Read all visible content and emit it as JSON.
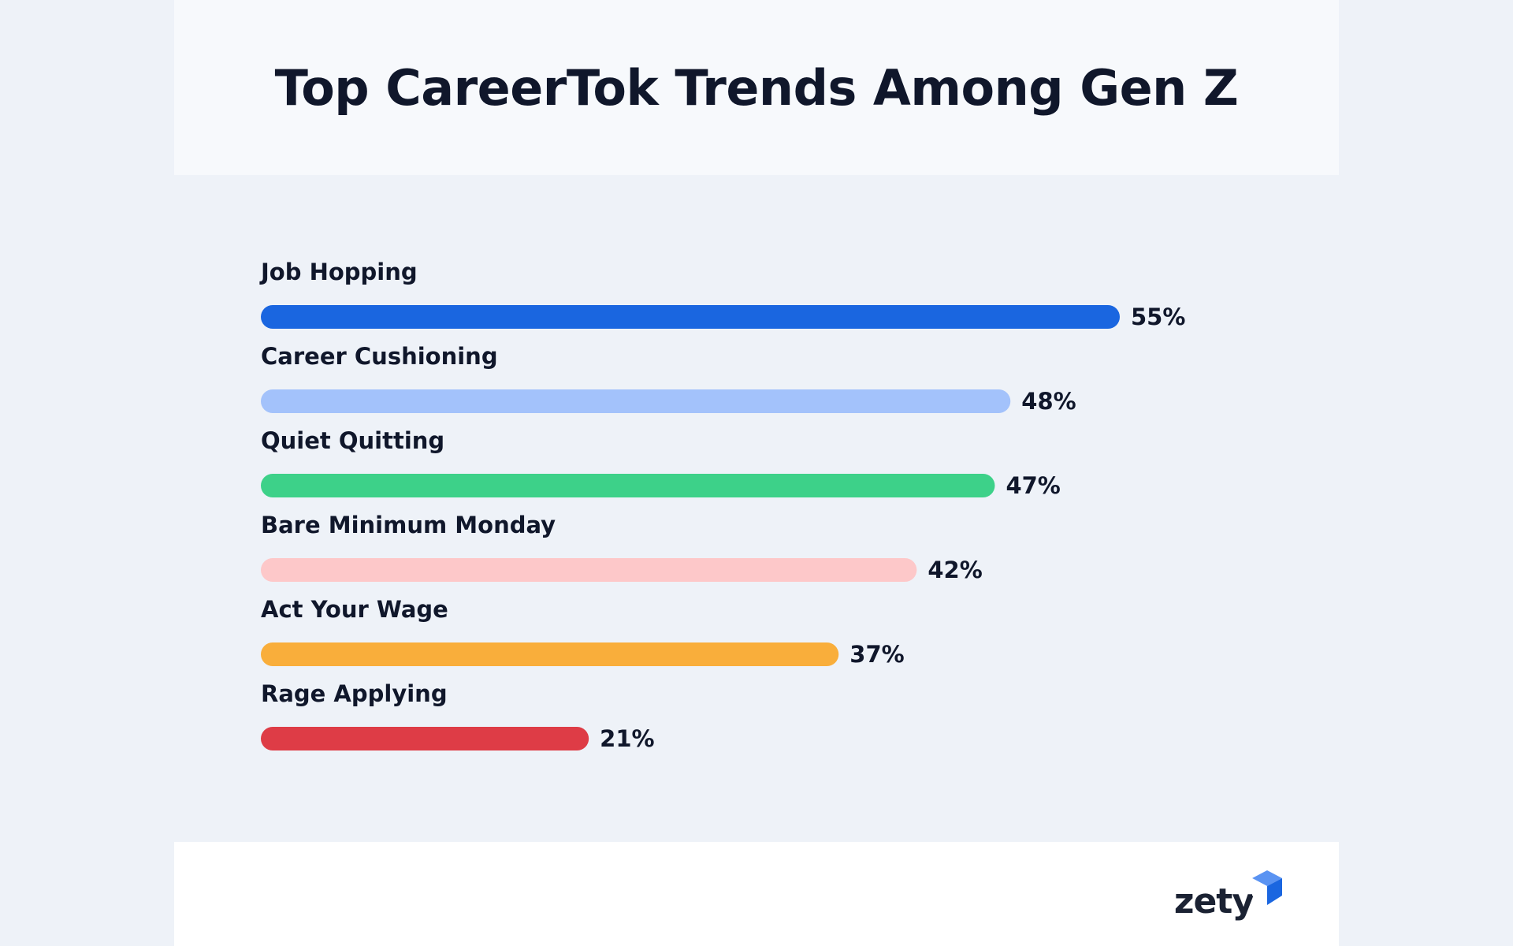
{
  "header": {
    "title": "Top CareerTok Trends Among Gen Z"
  },
  "chart_data": {
    "type": "bar",
    "orientation": "horizontal",
    "title": "Top CareerTok Trends Among Gen Z",
    "xlabel": "",
    "ylabel": "",
    "unit": "%",
    "xlim": [
      0,
      55
    ],
    "grid": false,
    "categories": [
      "Job Hopping",
      "Career Cushioning",
      "Quiet Quitting",
      "Bare Minimum Monday",
      "Act Your Wage",
      "Rage Applying"
    ],
    "values": [
      55,
      48,
      47,
      42,
      37,
      21
    ],
    "value_labels": [
      "55%",
      "48%",
      "47%",
      "42%",
      "37%",
      "21%"
    ],
    "colors": [
      "#1a66e0",
      "#a3c2fb",
      "#3dd189",
      "#fdc8c9",
      "#f9ae3b",
      "#de3c46"
    ]
  },
  "footer": {
    "logo_text": "zety",
    "logo_accent_color": "#1a66e0"
  }
}
